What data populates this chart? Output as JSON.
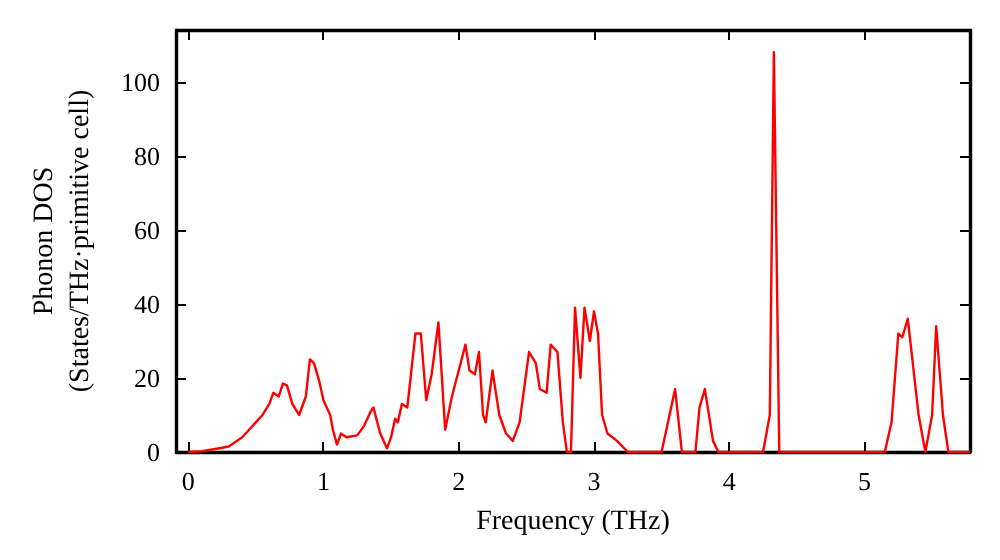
{
  "chart_data": {
    "type": "line",
    "xlabel": "Frequency (THz)",
    "ylabel": "Phonon DOS\n(States/THz·primitive cell)",
    "xlim": [
      -0.09,
      5.78
    ],
    "ylim": [
      0,
      114
    ],
    "xticks": [
      0,
      1,
      2,
      3,
      4,
      5
    ],
    "yticks": [
      0,
      20,
      40,
      60,
      80,
      100
    ],
    "grid": false,
    "marker": "none",
    "line_style": "solid",
    "series": [
      {
        "color": "#ff0000",
        "x": [
          0,
          0.1,
          0.2,
          0.3,
          0.4,
          0.45,
          0.5,
          0.55,
          0.6,
          0.63,
          0.67,
          0.7,
          0.73,
          0.77,
          0.82,
          0.87,
          0.9,
          0.93,
          0.97,
          1.0,
          1.05,
          1.07,
          1.1,
          1.13,
          1.17,
          1.25,
          1.3,
          1.35,
          1.37,
          1.42,
          1.47,
          1.5,
          1.53,
          1.55,
          1.58,
          1.62,
          1.68,
          1.72,
          1.76,
          1.8,
          1.85,
          1.9,
          1.95,
          2.0,
          2.05,
          2.08,
          2.12,
          2.15,
          2.18,
          2.2,
          2.25,
          2.3,
          2.35,
          2.4,
          2.45,
          2.52,
          2.57,
          2.6,
          2.65,
          2.68,
          2.73,
          2.77,
          2.8,
          2.83,
          2.86,
          2.9,
          2.93,
          2.97,
          3.0,
          3.03,
          3.06,
          3.1,
          3.17,
          3.25,
          3.5,
          3.6,
          3.65,
          3.75,
          3.78,
          3.82,
          3.88,
          3.92,
          4.25,
          4.3,
          4.33,
          4.37,
          5.15,
          5.2,
          5.25,
          5.28,
          5.32,
          5.4,
          5.45,
          5.5,
          5.53,
          5.58,
          5.62,
          5.78
        ],
        "values": [
          0,
          0.2,
          0.8,
          1.5,
          4,
          6,
          8,
          10,
          13,
          16,
          15,
          18.5,
          18,
          13,
          10,
          15,
          25,
          24,
          19,
          14,
          10,
          6,
          2,
          5,
          4,
          4.5,
          7,
          11,
          12,
          5,
          1,
          4,
          9,
          8,
          13,
          12,
          32,
          32,
          14,
          21,
          35,
          6,
          15,
          22,
          29,
          22,
          21,
          27,
          10,
          8,
          22,
          10,
          5,
          3,
          8,
          27,
          24,
          17,
          16,
          29,
          27,
          8,
          0,
          0,
          39,
          20,
          39,
          30,
          38,
          32,
          10,
          5,
          3,
          0,
          0,
          17,
          0,
          0,
          12,
          17,
          3,
          0,
          0,
          10,
          108,
          0,
          0,
          8,
          32,
          31,
          36,
          10,
          0,
          10,
          34,
          10,
          0,
          0
        ]
      }
    ]
  }
}
